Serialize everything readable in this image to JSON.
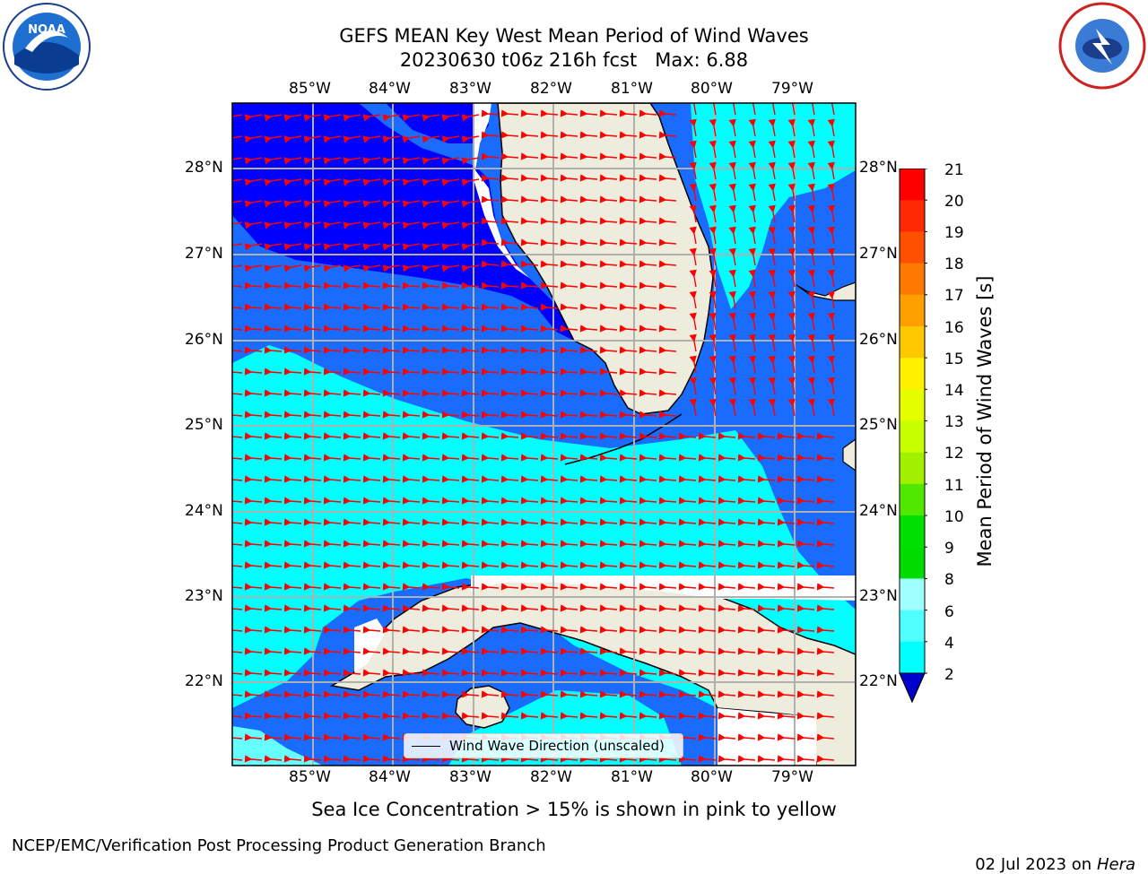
{
  "header": {
    "title_line1": "GEFS MEAN Key West Mean Period of Wind Waves",
    "title_line2": "20230630 t06z 216h fcst   Max: 6.88"
  },
  "logos": {
    "left": {
      "text": "NOAA",
      "icon": "noaa-logo-icon"
    },
    "right": {
      "icon": "nws-logo-icon"
    }
  },
  "map": {
    "lon_labels": [
      "85°W",
      "84°W",
      "83°W",
      "82°W",
      "81°W",
      "80°W",
      "79°W"
    ],
    "lat_labels": [
      "28°N",
      "27°N",
      "26°N",
      "25°N",
      "24°N",
      "23°N",
      "22°N"
    ],
    "legend_label": "Wind Wave Direction (unscaled)",
    "colors": {
      "land": "#eeecdc",
      "dark_blue": "#0000ff",
      "blue": "#1a6cff",
      "cyan": "#00ffff",
      "light_cyan": "#66ffff",
      "arrow": "#ff0000"
    }
  },
  "colorbar": {
    "label": "Mean Period of Wind Waves [s]",
    "ticks": [
      "21",
      "20",
      "19",
      "18",
      "17",
      "16",
      "15",
      "14",
      "13",
      "12",
      "11",
      "10",
      "9",
      "8",
      "6",
      "4",
      "2"
    ],
    "colors": [
      "#ff0000",
      "#ff2800",
      "#ff5000",
      "#ff7800",
      "#ffa000",
      "#ffc800",
      "#fff000",
      "#e6ff00",
      "#c8ff00",
      "#a0f000",
      "#50e800",
      "#00e000",
      "#00dc00",
      "#50f078",
      "#a0ffff",
      "#50ffff",
      "#00ffff",
      "#0070ff"
    ],
    "under_color": "#0000cc"
  },
  "subtitle": "Sea Ice Concentration > 15% is shown in pink to yellow",
  "footer": {
    "left": "NCEP/EMC/Verification Post Processing Product Generation Branch",
    "right_date": "02 Jul 2023 on ",
    "right_machine": "Hera"
  }
}
